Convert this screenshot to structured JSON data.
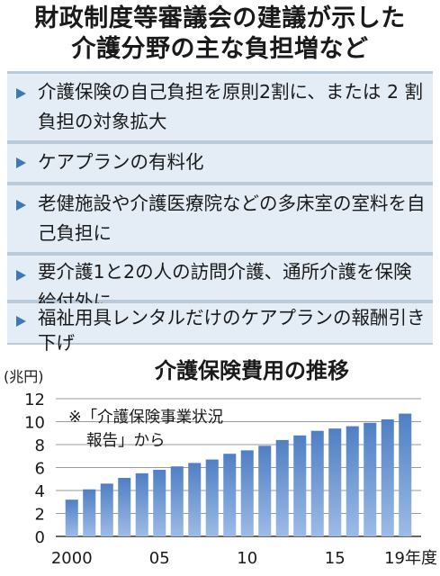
{
  "title": {
    "line1": "財政制度等審議会の建議が示した",
    "line2": "介護分野の主な負担増など"
  },
  "items": [
    "介護保険の自己負担を原則2割に、または 2 割負担の対象拡大",
    "ケアプランの有料化",
    "老健施設や介護医療院などの多床室の室料を自己負担に",
    "要介護1と2の人の訪問介護、通所介護を保険給付外に",
    "福祉用具レンタルだけのケアプランの報酬引き下げ"
  ],
  "chart_data": {
    "type": "bar",
    "title": "介護保険費用の推移",
    "ylabel": "(兆円)",
    "note_line1": "※「介護保険事業状況",
    "note_line2": "報告」から",
    "categories": [
      "2000",
      "2001",
      "2002",
      "2003",
      "2004",
      "2005",
      "2006",
      "2007",
      "2008",
      "2009",
      "2010",
      "2011",
      "2012",
      "2013",
      "2014",
      "2015",
      "2016",
      "2017",
      "2018",
      "2019"
    ],
    "values": [
      3.2,
      4.1,
      4.6,
      5.1,
      5.5,
      5.8,
      6.1,
      6.4,
      6.7,
      7.2,
      7.5,
      7.9,
      8.4,
      8.8,
      9.2,
      9.4,
      9.6,
      9.9,
      10.2,
      10.7
    ],
    "ylim": [
      0,
      12
    ],
    "yticks": [
      0,
      2,
      4,
      6,
      8,
      10,
      12
    ],
    "xtick_labels": [
      {
        "index": 0,
        "label": "2000"
      },
      {
        "index": 5,
        "label": "05"
      },
      {
        "index": 10,
        "label": "10"
      },
      {
        "index": 15,
        "label": "15"
      },
      {
        "index": 19,
        "label": "19年度"
      }
    ],
    "bar_color": "#7fa4d6",
    "bar_gradient_top": "#4f7fc4",
    "grid": true
  }
}
